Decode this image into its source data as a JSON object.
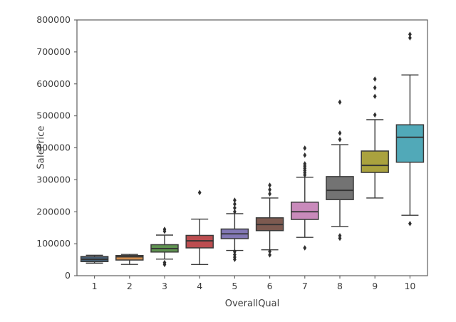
{
  "chart_data": {
    "type": "box",
    "xlabel": "OverallQual",
    "ylabel": "SalePrice",
    "ylim": [
      0,
      800000
    ],
    "y_tick_values": [
      0,
      100000,
      200000,
      300000,
      400000,
      500000,
      600000,
      700000,
      800000
    ],
    "y_tick_labels": [
      "0",
      "100000",
      "200000",
      "300000",
      "400000",
      "500000",
      "600000",
      "700000",
      "800000"
    ],
    "categories": [
      "1",
      "2",
      "3",
      "4",
      "5",
      "6",
      "7",
      "8",
      "9",
      "10"
    ],
    "grid": false,
    "legend_visible": false,
    "box_edge_color": "#3a3a3a",
    "median_color": "#333333",
    "outlier_color": "#2f2f2f",
    "spine_color": "#5f5f5f",
    "text_color": "#3d3d3d",
    "series": [
      {
        "category": "1",
        "color": "#455d73",
        "whisker_low": 39300,
        "q1": 44000,
        "median": 51000,
        "q3": 60000,
        "whisker_high": 64000,
        "outliers": []
      },
      {
        "category": "2",
        "color": "#d18d4f",
        "whisker_low": 35300,
        "q1": 49000,
        "median": 59000,
        "q3": 63000,
        "whisker_high": 66500,
        "outliers": []
      },
      {
        "category": "3",
        "color": "#5f9351",
        "whisker_low": 52000,
        "q1": 74000,
        "median": 85000,
        "q3": 97000,
        "whisker_high": 127000,
        "outliers": [
          145000,
          139000,
          41000,
          35000
        ]
      },
      {
        "category": "4",
        "color": "#bc4d50",
        "whisker_low": 35000,
        "q1": 87000,
        "median": 109000,
        "q3": 126000,
        "whisker_high": 177000,
        "outliers": [
          260000
        ]
      },
      {
        "category": "5",
        "color": "#8278b4",
        "whisker_low": 79000,
        "q1": 116000,
        "median": 131000,
        "q3": 146000,
        "whisker_high": 194000,
        "outliers": [
          236000,
          224000,
          212000,
          200000,
          75000,
          66000,
          58000,
          51000
        ]
      },
      {
        "category": "6",
        "color": "#7d5a50",
        "whisker_low": 81000,
        "q1": 141000,
        "median": 160000,
        "q3": 181000,
        "whisker_high": 243000,
        "outliers": [
          283000,
          269000,
          256000,
          76000,
          65000
        ]
      },
      {
        "category": "7",
        "color": "#c98abb",
        "whisker_low": 120000,
        "q1": 176000,
        "median": 200000,
        "q3": 230000,
        "whisker_high": 308000,
        "outliers": [
          399000,
          377000,
          350000,
          343000,
          336000,
          329000,
          322000,
          315000,
          87000
        ]
      },
      {
        "category": "8",
        "color": "#737373",
        "whisker_low": 154000,
        "q1": 238000,
        "median": 267000,
        "q3": 310000,
        "whisker_high": 410000,
        "outliers": [
          543000,
          446000,
          426000,
          125000,
          117000
        ]
      },
      {
        "category": "9",
        "color": "#aaa23e",
        "whisker_low": 243000,
        "q1": 323000,
        "median": 345000,
        "q3": 390000,
        "whisker_high": 488000,
        "outliers": [
          615000,
          588000,
          561000,
          503000
        ]
      },
      {
        "category": "10",
        "color": "#51a9b8",
        "whisker_low": 189000,
        "q1": 355000,
        "median": 433000,
        "q3": 472000,
        "whisker_high": 628000,
        "outliers": [
          755000,
          744000,
          163000
        ]
      }
    ]
  }
}
